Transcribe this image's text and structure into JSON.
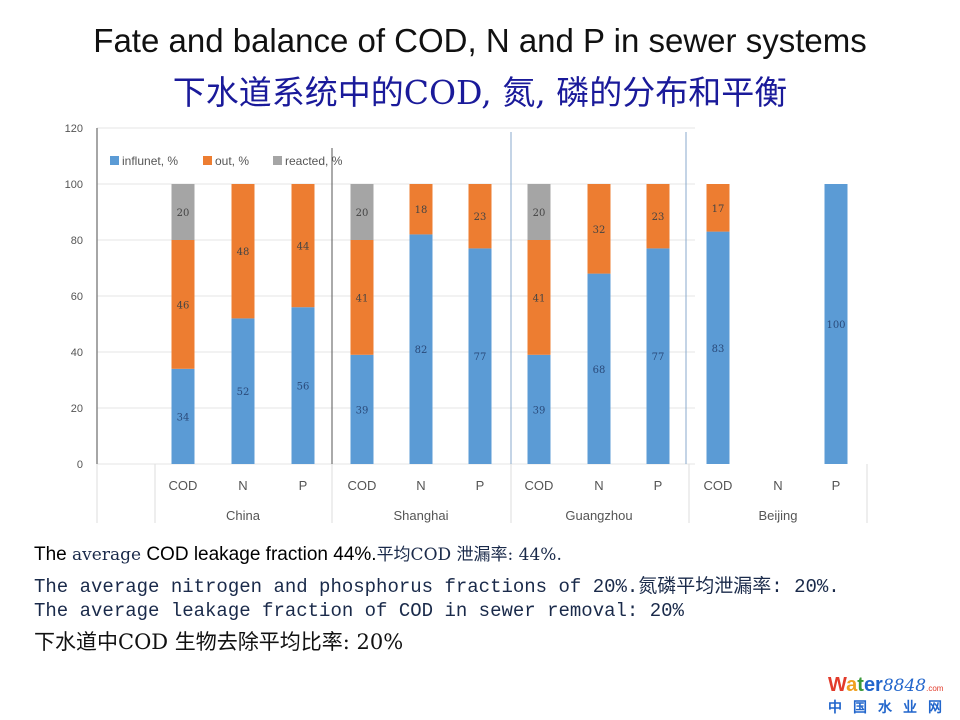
{
  "title_en": "Fate and balance of COD, N and P in sewer systems",
  "title_zh": "下水道系统中的COD, 氮, 磷的分布和平衡",
  "chart_data": {
    "type": "bar",
    "stacked": true,
    "ylim": [
      0,
      120
    ],
    "yticks": [
      "0",
      "20",
      "40",
      "60",
      "80",
      "100",
      "120"
    ],
    "legend_position": "top-left",
    "groups": [
      "China",
      "Shanghai",
      "Guangzhou",
      "Beijing"
    ],
    "categories": [
      "COD",
      "N",
      "P",
      "COD",
      "N",
      "P",
      "COD",
      "N",
      "P",
      "COD",
      "N",
      "P"
    ],
    "series": [
      {
        "name": "influnet, %",
        "color": "#5b9bd5",
        "values": [
          34,
          52,
          56,
          39,
          82,
          77,
          39,
          68,
          77,
          83,
          0,
          100
        ],
        "labels": [
          "34",
          "52",
          "56",
          "39",
          "82",
          "77",
          "39",
          "68",
          "77",
          "83",
          "",
          "100"
        ]
      },
      {
        "name": "out, %",
        "color": "#ed7d31",
        "values": [
          46,
          48,
          44,
          41,
          18,
          23,
          41,
          32,
          23,
          17,
          0,
          0
        ],
        "labels": [
          "46",
          "48",
          "44",
          "41",
          "18",
          "23",
          "41",
          "32",
          "23",
          "17",
          "",
          ""
        ]
      },
      {
        "name": "reacted, %",
        "color": "#a5a5a5",
        "values": [
          20,
          0,
          0,
          20,
          0,
          0,
          20,
          0,
          0,
          0,
          0,
          0
        ],
        "labels": [
          "20",
          "",
          "",
          "20",
          "",
          "",
          "20",
          "",
          "",
          "",
          "",
          ""
        ]
      }
    ]
  },
  "notes": {
    "line1_a": "The",
    "line1_b": "average",
    "line1_c": " COD leakage fraction 44%.",
    "line1_d": "平均COD 泄漏率: 44%.",
    "line2": "The average nitrogen and phosphorus fractions of 20%.氮磷平均泄漏率: 20%.",
    "line3": "The average leakage fraction of COD in sewer removal: 20%",
    "line4": "下水道中COD 生物去除平均比率: 20%"
  },
  "logo": {
    "top_a": "W",
    "top_b": "a",
    "top_c": "t",
    "top_d": "er",
    "top_num": "8848",
    "top_com": ".com",
    "bottom": "中国水业网"
  }
}
